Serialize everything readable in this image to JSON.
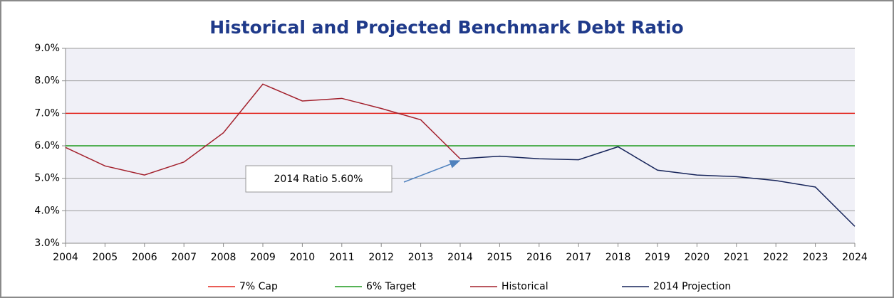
{
  "chart_data": {
    "type": "line",
    "title": "Historical and Projected Benchmark Debt Ratio",
    "x": [
      2004,
      2005,
      2006,
      2007,
      2008,
      2009,
      2010,
      2011,
      2012,
      2013,
      2014,
      2015,
      2016,
      2017,
      2018,
      2019,
      2020,
      2021,
      2022,
      2023,
      2024
    ],
    "xlim": [
      2004,
      2024
    ],
    "xticks": [
      2004,
      2005,
      2006,
      2007,
      2008,
      2009,
      2010,
      2011,
      2012,
      2013,
      2014,
      2015,
      2016,
      2017,
      2018,
      2019,
      2020,
      2021,
      2022,
      2023,
      2024
    ],
    "ylim": [
      3.0,
      9.0
    ],
    "yticks": [
      {
        "value": 3.0,
        "label": "3.0%"
      },
      {
        "value": 4.0,
        "label": "4.0%"
      },
      {
        "value": 5.0,
        "label": "5.0%"
      },
      {
        "value": 6.0,
        "label": "6.0%"
      },
      {
        "value": 7.0,
        "label": "7.0%"
      },
      {
        "value": 8.0,
        "label": "8.0%"
      },
      {
        "value": 9.0,
        "label": "9.0%"
      }
    ],
    "grid": true,
    "legend": "bottom",
    "series": [
      {
        "name": "7% Cap",
        "color": "#e3261f",
        "values": [
          7,
          7,
          7,
          7,
          7,
          7,
          7,
          7,
          7,
          7,
          7,
          7,
          7,
          7,
          7,
          7,
          7,
          7,
          7,
          7,
          7
        ]
      },
      {
        "name": "6% Target",
        "color": "#1e9a1e",
        "values": [
          6,
          6,
          6,
          6,
          6,
          6,
          6,
          6,
          6,
          6,
          6,
          6,
          6,
          6,
          6,
          6,
          6,
          6,
          6,
          6,
          6
        ]
      },
      {
        "name": "Historical",
        "color": "#a3202c",
        "values": [
          5.95,
          5.38,
          5.1,
          5.5,
          6.4,
          7.9,
          7.38,
          7.46,
          7.15,
          6.8,
          5.6,
          null,
          null,
          null,
          null,
          null,
          null,
          null,
          null,
          null,
          null
        ]
      },
      {
        "name": "2014 Projection",
        "color": "#16245a",
        "values": [
          null,
          null,
          null,
          null,
          null,
          null,
          null,
          null,
          null,
          null,
          5.6,
          5.68,
          5.6,
          5.57,
          5.97,
          5.25,
          5.1,
          5.05,
          4.93,
          4.73,
          3.52
        ]
      }
    ],
    "annotation": "2014 Ratio 5.60%"
  }
}
